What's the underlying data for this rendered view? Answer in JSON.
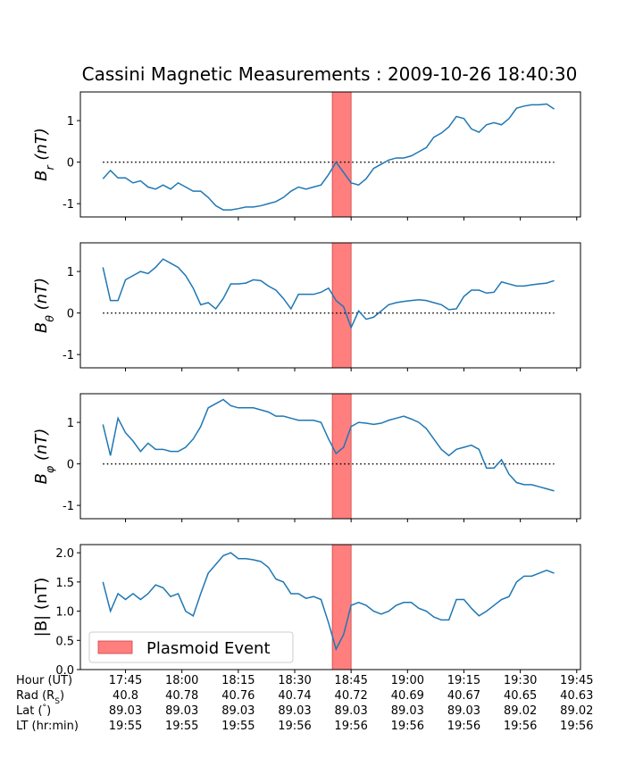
{
  "chart_data": {
    "type": "line",
    "title": "Cassini Magnetic Measurements : 2009-10-26 18:40:30",
    "x": [
      "17:39",
      "17:41",
      "17:43",
      "17:45",
      "17:47",
      "17:49",
      "17:51",
      "17:53",
      "17:55",
      "17:57",
      "17:59",
      "18:01",
      "18:03",
      "18:05",
      "18:07",
      "18:09",
      "18:11",
      "18:13",
      "18:15",
      "18:17",
      "18:19",
      "18:21",
      "18:23",
      "18:25",
      "18:27",
      "18:29",
      "18:31",
      "18:33",
      "18:35",
      "18:37",
      "18:39",
      "18:41",
      "18:43",
      "18:45",
      "18:47",
      "18:49",
      "18:51",
      "18:53",
      "18:55",
      "18:57",
      "18:59",
      "19:01",
      "19:03",
      "19:05",
      "19:07",
      "19:09",
      "19:11",
      "19:13",
      "19:15",
      "19:17",
      "19:19",
      "19:21",
      "19:23",
      "19:25",
      "19:27",
      "19:29",
      "19:31",
      "19:33",
      "19:35",
      "19:37",
      "19:39"
    ],
    "xlim": [
      "17:33",
      "19:46"
    ],
    "xticks": [
      "17:45",
      "18:00",
      "18:15",
      "18:30",
      "18:45",
      "19:00",
      "19:15",
      "19:30",
      "19:45"
    ],
    "color": "#1f77b4",
    "event": {
      "name": "Plasmoid Event",
      "range": [
        "18:40",
        "18:45"
      ],
      "color": "#ff7f7f",
      "legend": "lower left"
    },
    "panels": [
      {
        "ylabel": [
          "B",
          "r",
          " (nT)"
        ],
        "ylim": [
          -1.32,
          1.69
        ],
        "yticks": [
          -1,
          0,
          1
        ],
        "zero_line": true,
        "values": [
          -0.4,
          -0.2,
          -0.38,
          -0.38,
          -0.5,
          -0.45,
          -0.6,
          -0.65,
          -0.55,
          -0.65,
          -0.5,
          -0.6,
          -0.7,
          -0.7,
          -0.85,
          -1.05,
          -1.15,
          -1.15,
          -1.12,
          -1.08,
          -1.08,
          -1.05,
          -1.0,
          -0.95,
          -0.85,
          -0.7,
          -0.6,
          -0.65,
          -0.6,
          -0.55,
          -0.3,
          0.0,
          -0.25,
          -0.5,
          -0.55,
          -0.4,
          -0.15,
          -0.05,
          0.05,
          0.1,
          0.1,
          0.15,
          0.25,
          0.35,
          0.6,
          0.7,
          0.85,
          1.1,
          1.05,
          0.8,
          0.72,
          0.9,
          0.95,
          0.9,
          1.05,
          1.3,
          1.35,
          1.38,
          1.38,
          1.4,
          1.28
        ]
      },
      {
        "ylabel": [
          "B",
          "θ",
          " (nT)"
        ],
        "ylim": [
          -1.32,
          1.69
        ],
        "yticks": [
          -1,
          0,
          1
        ],
        "zero_line": true,
        "values": [
          1.1,
          0.3,
          0.3,
          0.8,
          0.9,
          1.0,
          0.95,
          1.1,
          1.3,
          1.2,
          1.1,
          0.9,
          0.6,
          0.2,
          0.25,
          0.1,
          0.35,
          0.7,
          0.7,
          0.72,
          0.8,
          0.78,
          0.65,
          0.55,
          0.35,
          0.1,
          0.45,
          0.45,
          0.45,
          0.5,
          0.6,
          0.3,
          0.15,
          -0.35,
          0.05,
          -0.15,
          -0.1,
          0.05,
          0.2,
          0.25,
          0.28,
          0.3,
          0.32,
          0.3,
          0.25,
          0.2,
          0.08,
          0.1,
          0.4,
          0.55,
          0.55,
          0.48,
          0.5,
          0.75,
          0.7,
          0.65,
          0.65,
          0.68,
          0.7,
          0.72,
          0.78
        ]
      },
      {
        "ylabel": [
          "B",
          "φ",
          " (nT)"
        ],
        "ylim": [
          -1.32,
          1.69
        ],
        "yticks": [
          -1,
          0,
          1
        ],
        "zero_line": true,
        "values": [
          0.95,
          0.2,
          1.1,
          0.75,
          0.55,
          0.3,
          0.5,
          0.35,
          0.35,
          0.3,
          0.3,
          0.4,
          0.6,
          0.9,
          1.35,
          1.45,
          1.55,
          1.4,
          1.35,
          1.35,
          1.35,
          1.3,
          1.25,
          1.15,
          1.15,
          1.1,
          1.05,
          1.05,
          1.05,
          1.0,
          0.6,
          0.25,
          0.4,
          0.9,
          1.0,
          0.98,
          0.95,
          0.98,
          1.05,
          1.1,
          1.15,
          1.08,
          1.0,
          0.85,
          0.6,
          0.35,
          0.2,
          0.35,
          0.4,
          0.45,
          0.35,
          -0.1,
          -0.1,
          0.1,
          -0.25,
          -0.45,
          -0.5,
          -0.5,
          -0.55,
          -0.6,
          -0.65
        ]
      },
      {
        "ylabel": [
          "|B| (nT)"
        ],
        "ylim": [
          0,
          2.14
        ],
        "yticks": [
          {
            "value": 0,
            "label": "0.0"
          },
          {
            "value": 0.5,
            "label": "0.5"
          },
          {
            "value": 1,
            "label": "1.0"
          },
          {
            "value": 1.5,
            "label": "1.5"
          },
          {
            "value": 2,
            "label": "2.0"
          }
        ],
        "zero_line": false,
        "legend": true,
        "values": [
          1.5,
          1.0,
          1.3,
          1.2,
          1.3,
          1.2,
          1.3,
          1.45,
          1.4,
          1.25,
          1.3,
          1.0,
          0.92,
          1.3,
          1.65,
          1.8,
          1.95,
          2.0,
          1.9,
          1.9,
          1.88,
          1.85,
          1.75,
          1.55,
          1.5,
          1.3,
          1.3,
          1.22,
          1.25,
          1.2,
          0.8,
          0.35,
          0.6,
          1.1,
          1.15,
          1.1,
          1.0,
          0.95,
          1.0,
          1.1,
          1.15,
          1.15,
          1.05,
          1.0,
          0.9,
          0.85,
          0.85,
          1.2,
          1.2,
          1.05,
          0.92,
          1.0,
          1.1,
          1.2,
          1.25,
          1.5,
          1.6,
          1.6,
          1.65,
          1.7,
          1.65
        ]
      }
    ],
    "tick_table": [
      {
        "label": [
          "Hour (UT)"
        ]
      },
      {
        "label": [
          "Rad (R",
          "S",
          ")"
        ],
        "values": [
          "40.8",
          "40.78",
          "40.76",
          "40.74",
          "40.72",
          "40.69",
          "40.67",
          "40.65",
          "40.63"
        ]
      },
      {
        "label": [
          "Lat (",
          "°",
          ")"
        ],
        "values": [
          "89.03",
          "89.03",
          "89.03",
          "89.03",
          "89.03",
          "89.03",
          "89.03",
          "89.02",
          "89.02"
        ]
      },
      {
        "label": [
          "LT (hr:min)"
        ],
        "values": [
          "19:55",
          "19:55",
          "19:55",
          "19:56",
          "19:56",
          "19:56",
          "19:56",
          "19:56",
          "19:56"
        ]
      }
    ]
  }
}
